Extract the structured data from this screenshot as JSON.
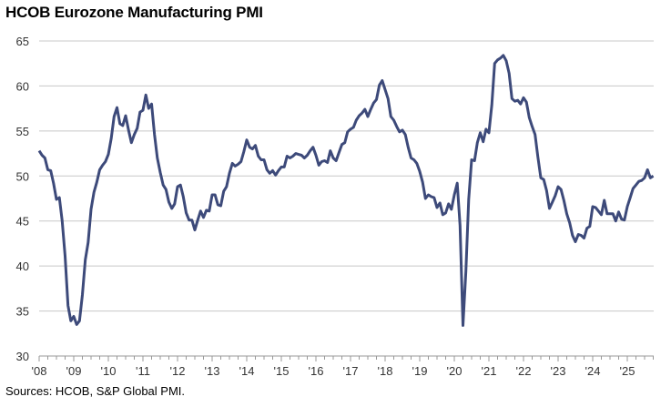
{
  "chart_data": {
    "type": "line",
    "title": "HCOB Eurozone Manufacturing PMI",
    "source": "Sources: HCOB, S&P Global PMI.",
    "xlabel": "",
    "ylabel": "",
    "ylim": [
      30,
      65
    ],
    "yticks": [
      30,
      35,
      40,
      45,
      50,
      55,
      60,
      65
    ],
    "xtick_labels": [
      "'08",
      "'09",
      "'10",
      "'11",
      "'12",
      "'13",
      "'14",
      "'15",
      "'16",
      "'17",
      "'18",
      "'19",
      "'20",
      "'21",
      "'22",
      "'23",
      "'24",
      "'25"
    ],
    "x_start": "2008-01",
    "x_frequency": "monthly",
    "grid": true,
    "line_color": "#3d4a7a",
    "series": [
      {
        "values": [
          52.8,
          52.3,
          52.0,
          50.7,
          50.6,
          49.2,
          47.4,
          47.6,
          45.0,
          41.1,
          35.6,
          33.9,
          34.4,
          33.5,
          33.9,
          36.8,
          40.7,
          42.6,
          46.3,
          48.2,
          49.3,
          50.7,
          51.2,
          51.6,
          52.4,
          54.2,
          56.6,
          57.6,
          55.8,
          55.6,
          56.7,
          55.1,
          53.7,
          54.6,
          55.3,
          57.1,
          57.3,
          59.0,
          57.5,
          58.0,
          54.6,
          52.0,
          50.4,
          49.0,
          48.5,
          47.1,
          46.4,
          46.9,
          48.8,
          49.0,
          47.7,
          45.9,
          45.1,
          45.1,
          44.0,
          45.1,
          46.1,
          45.4,
          46.2,
          46.1,
          47.9,
          47.9,
          46.8,
          46.7,
          48.3,
          48.8,
          50.3,
          51.4,
          51.1,
          51.3,
          51.6,
          52.7,
          54.0,
          53.2,
          53.0,
          53.4,
          52.2,
          51.8,
          51.8,
          50.7,
          50.3,
          50.6,
          50.1,
          50.6,
          51.0,
          51.0,
          52.2,
          52.0,
          52.2,
          52.5,
          52.4,
          52.3,
          52.0,
          52.3,
          52.8,
          53.2,
          52.3,
          51.2,
          51.6,
          51.7,
          51.5,
          52.8,
          52.0,
          51.7,
          52.6,
          53.5,
          53.7,
          54.9,
          55.2,
          55.4,
          56.2,
          56.7,
          57.0,
          57.4,
          56.6,
          57.4,
          58.1,
          58.5,
          60.1,
          60.6,
          59.6,
          58.6,
          56.6,
          56.2,
          55.5,
          54.9,
          55.1,
          54.6,
          53.2,
          52.0,
          51.8,
          51.4,
          50.5,
          49.3,
          47.5,
          47.9,
          47.7,
          47.6,
          46.5,
          47.0,
          45.7,
          45.9,
          46.9,
          46.3,
          47.9,
          49.2,
          44.5,
          33.4,
          39.4,
          47.4,
          51.8,
          51.7,
          53.7,
          54.8,
          53.8,
          55.2,
          54.8,
          57.9,
          62.5,
          62.9,
          63.1,
          63.4,
          62.8,
          61.4,
          58.6,
          58.3,
          58.4,
          58.0,
          58.7,
          58.2,
          56.5,
          55.5,
          54.6,
          52.1,
          49.8,
          49.6,
          48.4,
          46.4,
          47.1,
          47.8,
          48.8,
          48.5,
          47.3,
          45.8,
          44.8,
          43.4,
          42.7,
          43.5,
          43.4,
          43.1,
          44.2,
          44.4,
          46.6,
          46.5,
          46.1,
          45.7,
          47.3,
          45.8,
          45.8,
          45.8,
          45.0,
          46.0,
          45.2,
          45.1,
          46.6,
          47.6,
          48.6,
          49.0,
          49.4,
          49.5,
          49.8,
          50.7,
          49.8,
          50.0
        ]
      }
    ]
  }
}
